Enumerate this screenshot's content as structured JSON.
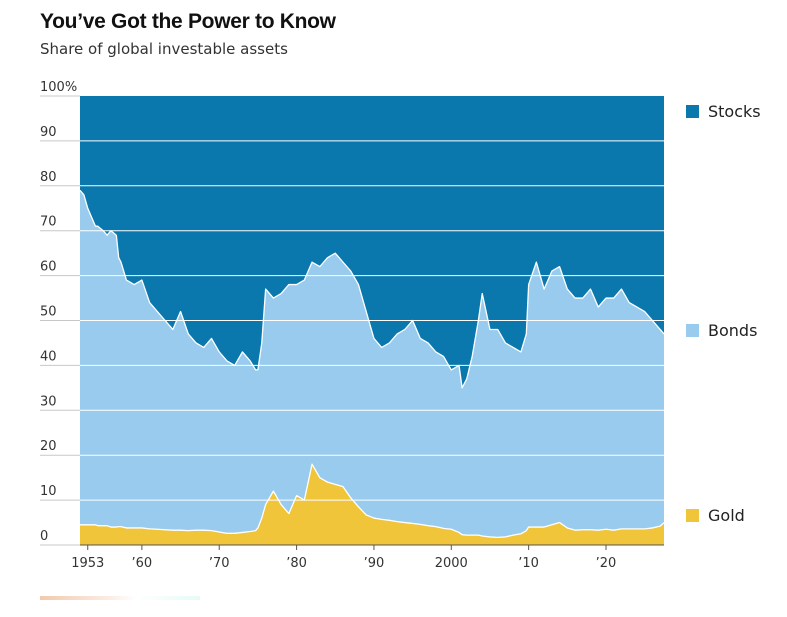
{
  "chart_data": {
    "type": "area",
    "stacked": true,
    "title": "You’ve Got the Power to Know",
    "subtitle": "Share of global investable assets",
    "xlim": [
      1952.0,
      2027.5
    ],
    "ylim": [
      0,
      100
    ],
    "y_ticks": [
      {
        "value": 0,
        "label": "0"
      },
      {
        "value": 10,
        "label": "10"
      },
      {
        "value": 20,
        "label": "20"
      },
      {
        "value": 30,
        "label": "30"
      },
      {
        "value": 40,
        "label": "40"
      },
      {
        "value": 50,
        "label": "50"
      },
      {
        "value": 60,
        "label": "60"
      },
      {
        "value": 70,
        "label": "70"
      },
      {
        "value": 80,
        "label": "80"
      },
      {
        "value": 90,
        "label": "90"
      },
      {
        "value": 100,
        "label": "100%"
      }
    ],
    "x_ticks": [
      {
        "value": 1953,
        "label": "1953"
      },
      {
        "value": 1960,
        "label": "’60"
      },
      {
        "value": 1970,
        "label": "’70"
      },
      {
        "value": 1980,
        "label": "’80"
      },
      {
        "value": 1990,
        "label": "’90"
      },
      {
        "value": 2000,
        "label": "2000"
      },
      {
        "value": 2010,
        "label": "’10"
      },
      {
        "value": 2020,
        "label": "’20"
      }
    ],
    "legend_placement": "right",
    "grid": true,
    "x": [
      1952.0,
      1952.5,
      1953,
      1954,
      1954.3,
      1955,
      1955.5,
      1956,
      1956.7,
      1957,
      1957.3,
      1958,
      1959,
      1960,
      1961,
      1962,
      1963,
      1964,
      1965,
      1966,
      1967,
      1968,
      1969,
      1970,
      1971,
      1972,
      1973,
      1974,
      1974.7,
      1975,
      1975.5,
      1976,
      1977,
      1978,
      1979,
      1980,
      1981,
      1982,
      1983,
      1984,
      1985,
      1986,
      1987,
      1988,
      1989,
      1990,
      1991,
      1992,
      1993,
      1994,
      1995,
      1996,
      1997,
      1998,
      1999,
      2000,
      2001,
      2001.4,
      2002,
      2002.7,
      2003,
      2003.5,
      2004,
      2005,
      2006,
      2007,
      2008,
      2009,
      2009.7,
      2010,
      2011,
      2012,
      2013,
      2014,
      2015,
      2016,
      2017,
      2018,
      2019,
      2020,
      2021,
      2022,
      2023,
      2024,
      2025,
      2026,
      2027,
      2027.5
    ],
    "series": [
      {
        "name": "Stocks",
        "color": "#0a77ad",
        "values": [
          21.0,
          22.0,
          25.0,
          29.0,
          29.0,
          30.0,
          31.0,
          30.0,
          31.0,
          36.0,
          37.0,
          41.0,
          42.0,
          41.0,
          46.0,
          48.0,
          50.0,
          52.0,
          48.0,
          53.0,
          55.0,
          56.0,
          54.0,
          57.0,
          59.0,
          60.0,
          57.0,
          59.0,
          61.0,
          61.0,
          55.0,
          43.0,
          45.0,
          44.0,
          42.0,
          42.0,
          41.0,
          37.0,
          38.0,
          36.0,
          35.0,
          37.0,
          39.0,
          42.0,
          48.0,
          54.0,
          56.0,
          55.0,
          53.0,
          52.0,
          50.0,
          54.0,
          55.0,
          57.0,
          58.0,
          61.0,
          60.0,
          65.0,
          63.0,
          58.0,
          55.0,
          50.0,
          44.0,
          52.0,
          52.0,
          55.0,
          56.0,
          57.0,
          53.0,
          42.0,
          37.0,
          43.0,
          39.0,
          38.0,
          43.0,
          45.0,
          45.0,
          43.0,
          47.0,
          45.0,
          45.0,
          43.0,
          46.0,
          47.0,
          48.0,
          50.0,
          52.0,
          53.0
        ]
      },
      {
        "name": "Bonds",
        "color": "#98cbed",
        "values": [
          74.5,
          73.5,
          70.5,
          66.5,
          66.7,
          65.7,
          64.7,
          66.0,
          65.0,
          59.9,
          58.9,
          55.2,
          54.2,
          55.2,
          50.4,
          48.5,
          46.6,
          44.7,
          48.7,
          43.8,
          41.7,
          40.7,
          42.8,
          40.1,
          38.4,
          37.4,
          40.2,
          38.0,
          35.8,
          35.2,
          39.0,
          48.0,
          43.0,
          47.0,
          51.0,
          47.0,
          49.0,
          45.0,
          47.0,
          50.0,
          51.5,
          50.0,
          50.5,
          49.5,
          45.3,
          40.0,
          38.3,
          39.5,
          41.8,
          43.0,
          45.2,
          41.4,
          40.7,
          38.9,
          38.3,
          35.5,
          37.2,
          32.7,
          34.8,
          39.8,
          42.8,
          47.8,
          54.0,
          46.2,
          46.3,
          43.2,
          41.8,
          40.5,
          43.8,
          54.0,
          59.0,
          53.0,
          56.5,
          57.0,
          53.2,
          51.7,
          51.6,
          53.6,
          49.7,
          51.5,
          51.7,
          53.4,
          50.4,
          49.4,
          48.4,
          46.2,
          43.8,
          42.0
        ]
      },
      {
        "name": "Gold",
        "color": "#f0c53a",
        "values": [
          4.5,
          4.5,
          4.5,
          4.5,
          4.3,
          4.3,
          4.3,
          4.0,
          4.0,
          4.1,
          4.1,
          3.8,
          3.8,
          3.8,
          3.6,
          3.5,
          3.4,
          3.3,
          3.3,
          3.2,
          3.3,
          3.3,
          3.2,
          2.9,
          2.6,
          2.6,
          2.8,
          3.0,
          3.2,
          3.8,
          6.0,
          9.0,
          12.0,
          9.0,
          7.0,
          11.0,
          10.0,
          18.0,
          15.0,
          14.0,
          13.5,
          13.0,
          10.5,
          8.5,
          6.7,
          6.0,
          5.7,
          5.5,
          5.2,
          5.0,
          4.8,
          4.6,
          4.3,
          4.1,
          3.7,
          3.5,
          2.8,
          2.3,
          2.2,
          2.2,
          2.2,
          2.2,
          2.0,
          1.8,
          1.7,
          1.8,
          2.2,
          2.5,
          3.2,
          4.0,
          4.0,
          4.0,
          4.5,
          5.0,
          3.8,
          3.3,
          3.4,
          3.4,
          3.3,
          3.5,
          3.3,
          3.6,
          3.6,
          3.6,
          3.6,
          3.8,
          4.2,
          5.0
        ]
      }
    ]
  }
}
